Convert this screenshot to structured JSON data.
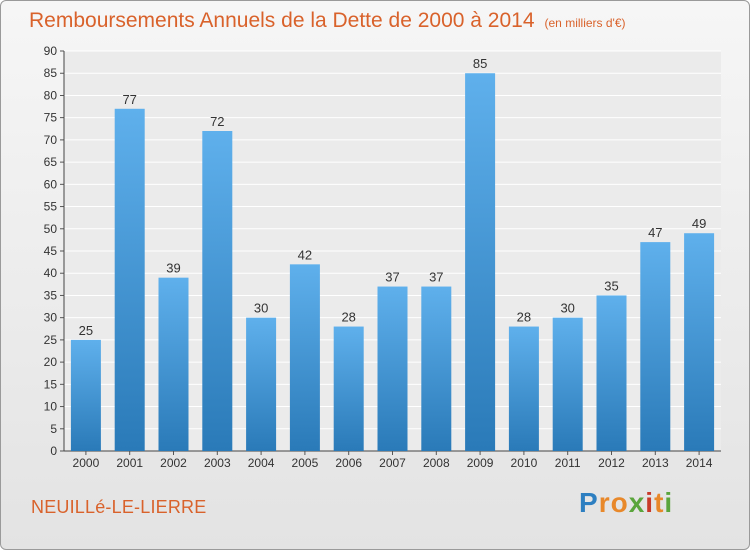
{
  "header": {
    "title": "Remboursements Annuels de la Dette de 2000 à 2014",
    "unit": "(en milliers d'€)"
  },
  "footer": {
    "town": "NEUILLé-LE-LIERRE",
    "logo": "Proxiti"
  },
  "colors": {
    "accent": "#d9622b",
    "bar_light": "#5fb0ec",
    "bar_dark": "#2a7ab8",
    "logo_letters": [
      "#2d7fc1",
      "#e8882a",
      "#e8882a",
      "#5aa53c",
      "#c83a2a",
      "#e8882a",
      "#5aa53c"
    ]
  },
  "chart_data": {
    "type": "bar",
    "title": "Remboursements Annuels de la Dette de 2000 à 2014",
    "xlabel": "",
    "ylabel": "",
    "ylim": [
      0,
      90
    ],
    "ytick_step": 5,
    "grid": true,
    "categories": [
      "2000",
      "2001",
      "2002",
      "2003",
      "2004",
      "2005",
      "2006",
      "2007",
      "2008",
      "2009",
      "2010",
      "2011",
      "2012",
      "2013",
      "2014"
    ],
    "values": [
      25,
      77,
      39,
      72,
      30,
      42,
      28,
      37,
      37,
      85,
      28,
      30,
      35,
      47,
      49
    ]
  }
}
